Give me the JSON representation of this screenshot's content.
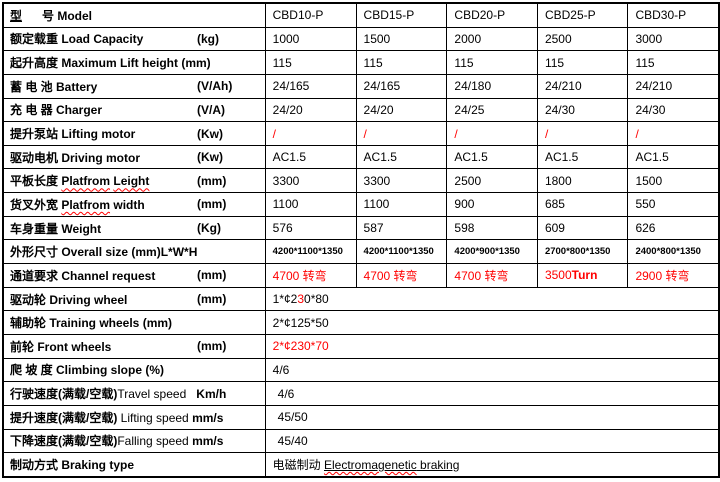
{
  "colors": {
    "highlight_red": "#ff0000",
    "border": "#000000",
    "background": "#ffffff"
  },
  "table": {
    "rows": [
      {
        "label_html": "<u>型</u>&nbsp;&nbsp;&nbsp;&nbsp;&nbsp;&nbsp;号 Model",
        "values": [
          "CBD10-P",
          "CBD15-P",
          "CBD20-P",
          "CBD25-P",
          "CBD30-P"
        ]
      },
      {
        "label": "额定载重 Load Capacity",
        "unit": "(kg)",
        "values": [
          "1000",
          "1500",
          "2000",
          "2500",
          "3000"
        ]
      },
      {
        "label": "起升高度 Maximum Lift height (mm)",
        "values": [
          "115",
          "115",
          "115",
          "115",
          "115"
        ]
      },
      {
        "label": "蓄 电 池 Battery",
        "unit": "(V/Ah)",
        "values": [
          "24/165",
          "24/165",
          "24/180",
          "24/210",
          "24/210"
        ]
      },
      {
        "label": "充 电 器 Charger",
        "unit": "(V/A)",
        "values": [
          "24/20",
          "24/20",
          "24/25",
          "24/30",
          "24/30"
        ]
      },
      {
        "label": "提升泵站 Lifting motor",
        "unit": "(Kw)",
        "values_class": "red",
        "values": [
          "/",
          "/",
          "/",
          "/",
          "/"
        ]
      },
      {
        "label": "驱动电机 Driving motor",
        "unit": "(Kw)",
        "values": [
          "AC1.5",
          "AC1.5",
          "AC1.5",
          "AC1.5",
          "AC1.5"
        ]
      },
      {
        "label_html": "平板长度 <span class='wavy'>Platfrom</span> <span class='wavy'>Leight</span>",
        "unit": "(mm)",
        "values": [
          "3300",
          "3300",
          "2500",
          "1800",
          "1500"
        ]
      },
      {
        "label_html": "货叉外宽 <span class='wavy'>Platfrom</span> width",
        "unit": "(mm)",
        "values": [
          "1100",
          "1100",
          "900",
          "685",
          "550"
        ]
      },
      {
        "label": "车身重量 Weight",
        "unit": "(Kg)",
        "values": [
          "576",
          "587",
          "598",
          "609",
          "626"
        ]
      },
      {
        "label": "外形尺寸 Overall size (mm)L*W*H",
        "values_class": "small",
        "values": [
          "4200*1100*1350",
          "4200*1100*1350",
          "4200*900*1350",
          "2700*800*1350",
          "2400*800*1350"
        ]
      },
      {
        "label": "通道要求 Channel request",
        "unit": "(mm)",
        "values_class": "red",
        "values_html": [
          "4700 转弯",
          "4700 转弯",
          "4700 转弯",
          "3500<b>Turn</b>",
          "2900 转弯"
        ]
      },
      {
        "label": "驱动轮 Driving wheel",
        "unit": "(mm)",
        "merged_html": "1*¢2<span class='red'>3</span>0*80"
      },
      {
        "label": "辅助轮 Training wheels (mm)",
        "merged": "2*¢125*50"
      },
      {
        "label": "前轮 Front wheels",
        "unit": "(mm)",
        "merged_class": "red",
        "merged": "2*¢230*70"
      },
      {
        "label": "爬 坡 度 Climbing slope (%)",
        "merged": "4/6"
      },
      {
        "label_html": "行驶速度(满载/空载)<span class='reg'>Travel speed</span>&nbsp;&nbsp;&nbsp;<b>Km/h</b>",
        "merged_class": "pad",
        "merged": "4/6"
      },
      {
        "label_html": "提升速度(满载/空载) <span class='reg'>Lifting speed</span> <b>mm/s</b>",
        "merged_class": "pad",
        "merged": "45/50"
      },
      {
        "label_html": "下降速度(满载/空载)<span class='reg'>Falling speed</span> <b>mm/s</b>",
        "merged_class": "pad",
        "merged": "45/40"
      },
      {
        "label": "制动方式 Braking type",
        "merged_html": "电磁制动 <span class='u'><span class='wavy'>Electromagenetic</span> braking</span>"
      }
    ]
  }
}
